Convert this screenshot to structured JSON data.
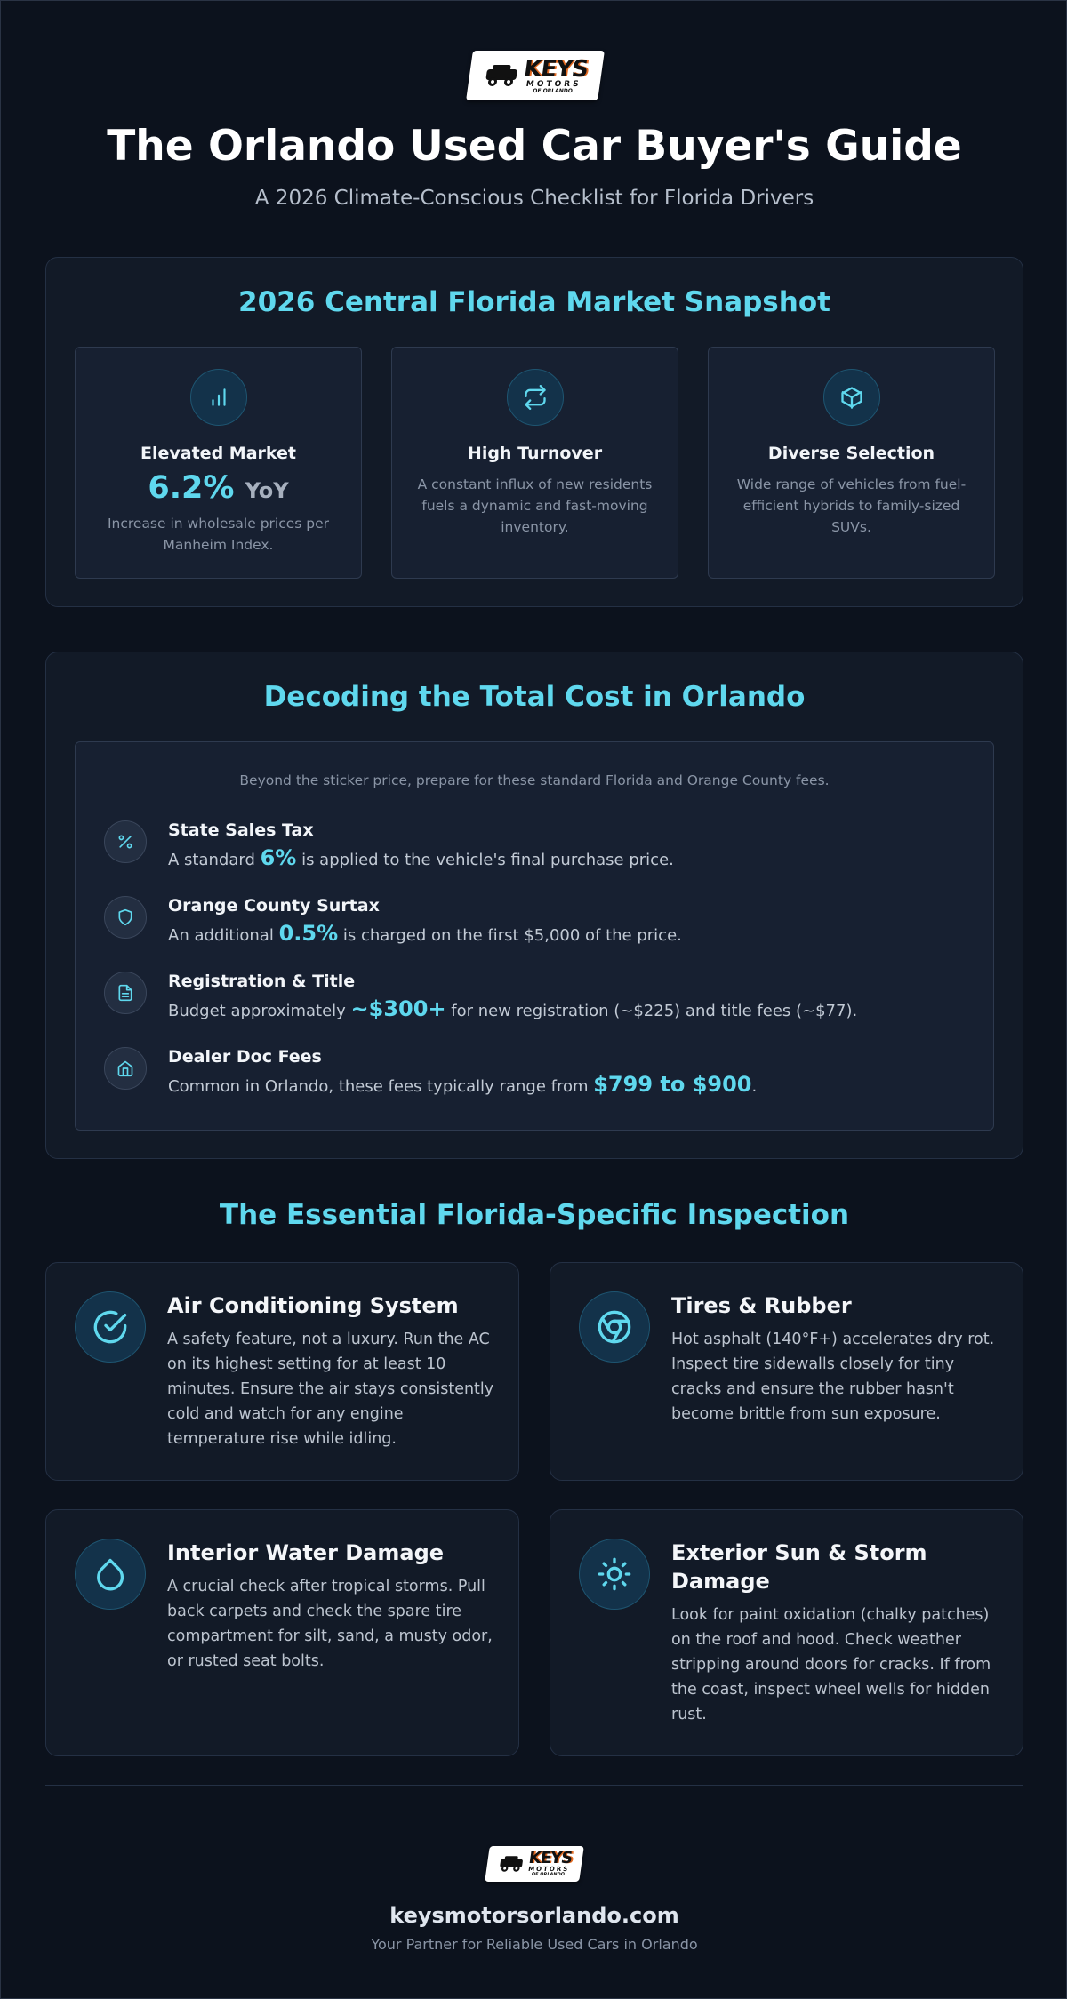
{
  "brand": {
    "logo_word": "KEYS",
    "logo_sub": "MOTORS",
    "logo_small": "OF ORLANDO",
    "accent": "#5fd8ee",
    "logo_accent": "#e36b23"
  },
  "header": {
    "title": "The Orlando Used Car Buyer's Guide",
    "subtitle": "A 2026 Climate-Conscious Checklist for Florida Drivers"
  },
  "snapshot": {
    "title": "2026 Central Florida Market Snapshot",
    "cards": [
      {
        "icon": "bar-chart-icon",
        "title": "Elevated Market",
        "big": "6.2%",
        "big_unit": "YoY",
        "desc": "Increase in wholesale prices per Manheim Index."
      },
      {
        "icon": "refresh-icon",
        "title": "High Turnover",
        "desc": "A constant influx of new residents fuels a dynamic and fast-moving inventory."
      },
      {
        "icon": "box-icon",
        "title": "Diverse Selection",
        "desc": "Wide range of vehicles from fuel-efficient hybrids to family-sized SUVs."
      }
    ]
  },
  "cost": {
    "title": "Decoding the Total Cost in Orlando",
    "intro": "Beyond the sticker price, prepare for these standard Florida and Orange County fees.",
    "items": [
      {
        "icon": "percent-icon",
        "title": "State Sales Tax",
        "pre": "A standard ",
        "hl": "6%",
        "post": " is applied to the vehicle's final purchase price."
      },
      {
        "icon": "shield-icon",
        "title": "Orange County Surtax",
        "pre": "An additional ",
        "hl": "0.5%",
        "post": " is charged on the first $5,000 of the price."
      },
      {
        "icon": "document-icon",
        "title": "Registration & Title",
        "pre": "Budget approximately ",
        "hl": "~$300+",
        "post": " for new registration (~$225) and title fees (~$77)."
      },
      {
        "icon": "home-icon",
        "title": "Dealer Doc Fees",
        "pre": "Common in Orlando, these fees typically range from ",
        "hl": "$799 to $900",
        "post": "."
      }
    ]
  },
  "inspection": {
    "title": "The Essential Florida-Specific Inspection",
    "cards": [
      {
        "icon": "check-circle-icon",
        "title": "Air Conditioning System",
        "desc": "A safety feature, not a luxury. Run the AC on its highest setting for at least 10 minutes. Ensure the air stays consistently cold and watch for any engine temperature rise while idling."
      },
      {
        "icon": "tire-icon",
        "title": "Tires & Rubber",
        "desc": "Hot asphalt (140°F+) accelerates dry rot. Inspect tire sidewalls closely for tiny cracks and ensure the rubber hasn't become brittle from sun exposure."
      },
      {
        "icon": "water-drop-icon",
        "title": "Interior Water Damage",
        "desc": "A crucial check after tropical storms. Pull back carpets and check the spare tire compartment for silt, sand, a musty odor, or rusted seat bolts."
      },
      {
        "icon": "sun-icon",
        "title": "Exterior Sun & Storm Damage",
        "desc": "Look for paint oxidation (chalky patches) on the roof and hood. Check weather stripping around doors for cracks. If from the coast, inspect wheel wells for hidden rust."
      }
    ]
  },
  "footer": {
    "url": "keysmotorsorlando.com",
    "tagline": "Your Partner for Reliable Used Cars in Orlando"
  }
}
